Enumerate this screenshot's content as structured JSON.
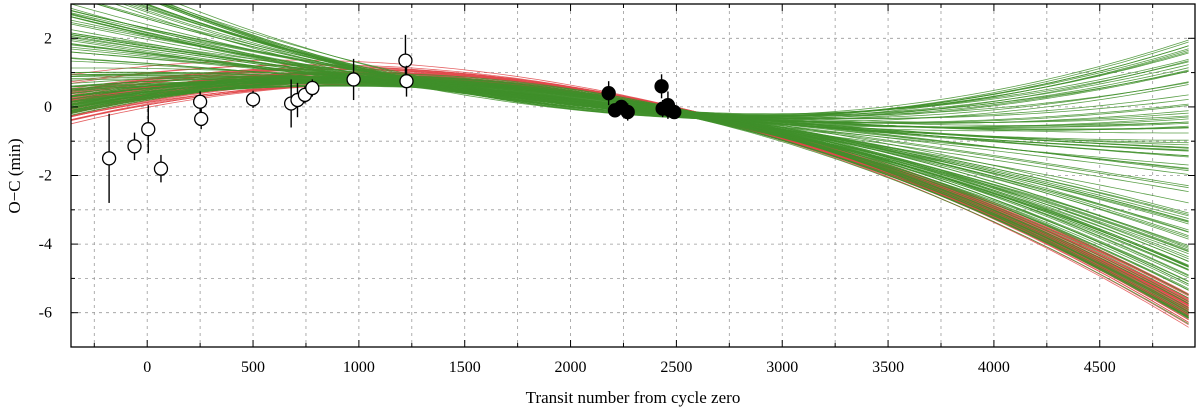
{
  "chart_data": {
    "type": "scatter",
    "title": "",
    "xlabel": "Transit number from cycle zero",
    "ylabel": "O−C (min)",
    "xlim": [
      -360,
      4950
    ],
    "ylim": [
      -7,
      3
    ],
    "x_ticks": [
      0,
      500,
      1000,
      1500,
      2000,
      2500,
      3000,
      3500,
      4000,
      4500
    ],
    "x_tick_labels": [
      "0",
      "500",
      "1000",
      "1500",
      "2000",
      "2500",
      "3000",
      "3500",
      "4000",
      "4500"
    ],
    "y_ticks": [
      2,
      0,
      -2,
      -4,
      -6
    ],
    "y_tick_labels": [
      "2",
      "0",
      "-2",
      "-4",
      "-6"
    ],
    "grid": true,
    "legend": "none",
    "colors": {
      "green_model": "#3f8f2a",
      "red_model": "#e0484a",
      "points": "#000000"
    },
    "model_curves": {
      "description_free": true,
      "red_n": 55,
      "green_n": 120,
      "pivot_epoch": 2600
    },
    "series": [
      {
        "marker": "open-circle",
        "points": [
          {
            "x": -180,
            "y": -1.5,
            "err": 1.3
          },
          {
            "x": -60,
            "y": -1.15,
            "err": 0.4
          },
          {
            "x": 5,
            "y": -0.65,
            "err": 0.7
          },
          {
            "x": 65,
            "y": -1.8,
            "err": 0.4
          },
          {
            "x": 250,
            "y": 0.15,
            "err": 0.3
          },
          {
            "x": 255,
            "y": -0.35,
            "err": 0.3
          },
          {
            "x": 500,
            "y": 0.22,
            "err": 0.25
          },
          {
            "x": 680,
            "y": 0.1,
            "err": 0.7
          },
          {
            "x": 710,
            "y": 0.2,
            "err": 0.5
          },
          {
            "x": 745,
            "y": 0.35,
            "err": 0.25
          },
          {
            "x": 780,
            "y": 0.55,
            "err": 0.25
          },
          {
            "x": 975,
            "y": 0.8,
            "err": 0.6
          },
          {
            "x": 1220,
            "y": 1.35,
            "err": 0.75
          },
          {
            "x": 1225,
            "y": 0.75,
            "err": 0.45
          }
        ]
      },
      {
        "marker": "filled-circle",
        "points": [
          {
            "x": 2180,
            "y": 0.4,
            "err": 0.35
          },
          {
            "x": 2210,
            "y": -0.1,
            "err": 0.2
          },
          {
            "x": 2240,
            "y": 0.0,
            "err": 0.2
          },
          {
            "x": 2270,
            "y": -0.15,
            "err": 0.25
          },
          {
            "x": 2430,
            "y": 0.6,
            "err": 0.35
          },
          {
            "x": 2435,
            "y": -0.05,
            "err": 0.25
          },
          {
            "x": 2460,
            "y": 0.05,
            "err": 0.4
          },
          {
            "x": 2470,
            "y": -0.1,
            "err": 0.2
          },
          {
            "x": 2490,
            "y": -0.15,
            "err": 0.2
          }
        ]
      }
    ]
  }
}
